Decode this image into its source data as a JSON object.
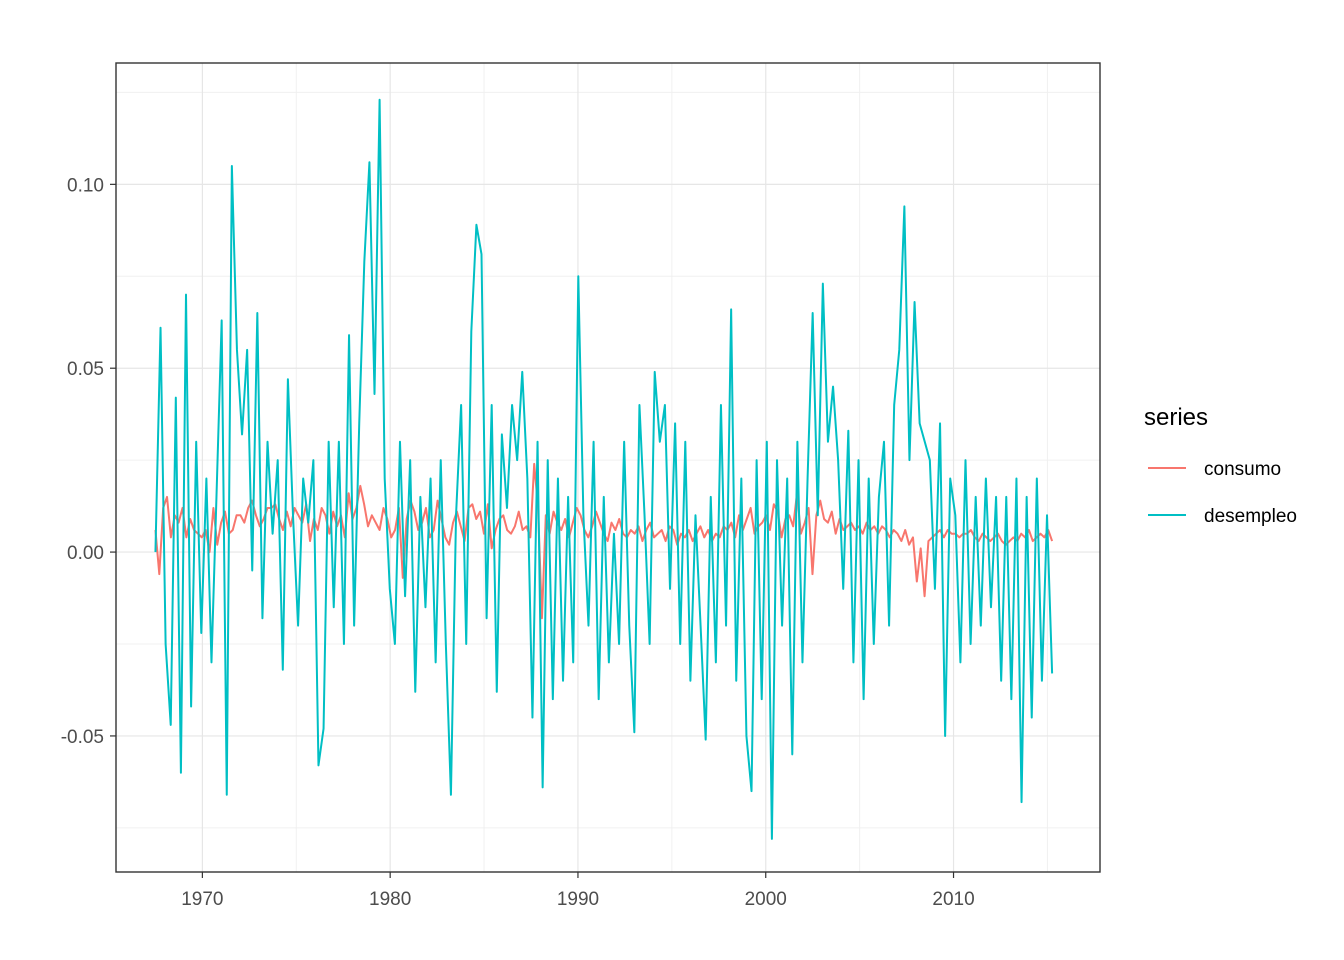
{
  "chart_data": {
    "type": "line",
    "title": "",
    "xlabel": "",
    "ylabel": "",
    "xlim": [
      1965.4,
      2017.8
    ],
    "ylim": [
      -0.087,
      0.133
    ],
    "x_ticks": [
      1970,
      1980,
      1990,
      2000,
      2010
    ],
    "x_tick_labels": [
      "1970",
      "1980",
      "1990",
      "2000",
      "2010"
    ],
    "y_ticks": [
      -0.05,
      0.0,
      0.05,
      0.1
    ],
    "y_tick_labels": [
      "-0.05",
      "0.00",
      "0.05",
      "0.10"
    ],
    "grid": true,
    "legend": {
      "title": "series",
      "position": "right",
      "entries": [
        {
          "label": "consumo",
          "color": "#F8766D"
        },
        {
          "label": "desempleo",
          "color": "#00BFC4"
        }
      ]
    },
    "x_start": 1967.5,
    "x_step": 0.25,
    "series": [
      {
        "name": "consumo",
        "color": "#F8766D",
        "values": [
          0.006,
          -0.006,
          0.012,
          0.015,
          0.004,
          0.01,
          0.008,
          0.012,
          0.004,
          0.009,
          0.006,
          0.005,
          0.004,
          0.006,
          0.0,
          0.012,
          0.002,
          0.008,
          0.011,
          0.005,
          0.006,
          0.01,
          0.01,
          0.008,
          0.012,
          0.014,
          0.01,
          0.007,
          0.009,
          0.012,
          0.012,
          0.013,
          0.009,
          0.006,
          0.011,
          0.007,
          0.012,
          0.01,
          0.008,
          0.013,
          0.003,
          0.009,
          0.006,
          0.012,
          0.01,
          0.005,
          0.011,
          0.007,
          0.01,
          0.004,
          0.016,
          0.009,
          0.012,
          0.018,
          0.013,
          0.007,
          0.01,
          0.008,
          0.006,
          0.012,
          0.009,
          0.004,
          0.006,
          0.012,
          -0.007,
          0.009,
          0.014,
          0.011,
          0.006,
          0.008,
          0.012,
          0.004,
          0.006,
          0.014,
          0.009,
          0.004,
          0.002,
          0.008,
          0.011,
          0.007,
          0.003,
          0.012,
          0.013,
          0.009,
          0.011,
          0.005,
          0.013,
          0.001,
          0.006,
          0.009,
          0.01,
          0.006,
          0.005,
          0.007,
          0.011,
          0.006,
          0.007,
          0.004,
          0.024,
          0.012,
          -0.018,
          0.01,
          0.005,
          0.011,
          0.008,
          0.006,
          0.009,
          0.004,
          0.008,
          0.012,
          0.01,
          0.006,
          0.004,
          0.007,
          0.011,
          0.008,
          0.005,
          0.003,
          0.008,
          0.006,
          0.009,
          0.005,
          0.004,
          0.006,
          0.005,
          0.007,
          0.003,
          0.006,
          0.008,
          0.004,
          0.005,
          0.006,
          0.003,
          0.007,
          0.006,
          0.002,
          0.005,
          0.004,
          0.006,
          0.003,
          0.005,
          0.007,
          0.004,
          0.006,
          0.003,
          0.005,
          0.004,
          0.007,
          0.006,
          0.008,
          0.004,
          0.01,
          0.006,
          0.009,
          0.012,
          0.005,
          0.007,
          0.008,
          0.01,
          0.006,
          0.013,
          0.011,
          0.004,
          0.009,
          0.01,
          0.007,
          0.016,
          0.005,
          0.008,
          0.012,
          -0.006,
          0.01,
          0.014,
          0.009,
          0.008,
          0.011,
          0.005,
          0.009,
          0.006,
          0.007,
          0.008,
          0.006,
          0.007,
          0.005,
          0.008,
          0.006,
          0.007,
          0.005,
          0.007,
          0.006,
          0.004,
          0.006,
          0.005,
          0.003,
          0.006,
          0.002,
          0.004,
          -0.008,
          0.001,
          -0.012,
          0.003,
          0.004,
          0.005,
          0.006,
          0.004,
          0.006,
          0.005,
          0.005,
          0.004,
          0.005,
          0.005,
          0.006,
          0.004,
          0.003,
          0.005,
          0.004,
          0.003,
          0.004,
          0.005,
          0.003,
          0.002,
          0.003,
          0.004,
          0.003,
          0.005,
          0.004,
          0.006,
          0.003,
          0.004,
          0.005,
          0.004,
          0.006,
          0.003
        ]
      },
      {
        "name": "desempleo",
        "color": "#00BFC4",
        "values": [
          0.0,
          0.061,
          -0.025,
          -0.047,
          0.042,
          -0.06,
          0.07,
          -0.042,
          0.03,
          -0.022,
          0.02,
          -0.03,
          0.016,
          0.063,
          -0.066,
          0.105,
          0.055,
          0.032,
          0.055,
          -0.005,
          0.065,
          -0.018,
          0.03,
          0.005,
          0.025,
          -0.032,
          0.047,
          0.01,
          -0.02,
          0.02,
          0.008,
          0.025,
          -0.058,
          -0.048,
          0.03,
          -0.015,
          0.03,
          -0.025,
          0.059,
          -0.02,
          0.035,
          0.079,
          0.106,
          0.043,
          0.123,
          0.02,
          -0.01,
          -0.025,
          0.03,
          -0.012,
          0.025,
          -0.038,
          0.015,
          -0.015,
          0.02,
          -0.03,
          0.025,
          -0.025,
          -0.066,
          0.01,
          0.04,
          -0.025,
          0.06,
          0.089,
          0.081,
          -0.018,
          0.04,
          -0.038,
          0.032,
          0.012,
          0.04,
          0.025,
          0.049,
          0.02,
          -0.045,
          0.03,
          -0.064,
          0.025,
          -0.04,
          0.02,
          -0.035,
          0.015,
          -0.03,
          0.075,
          0.01,
          -0.02,
          0.03,
          -0.04,
          0.015,
          -0.03,
          0.005,
          -0.025,
          0.03,
          -0.02,
          -0.049,
          0.04,
          0.01,
          -0.025,
          0.049,
          0.03,
          0.04,
          -0.01,
          0.035,
          -0.025,
          0.03,
          -0.035,
          0.01,
          -0.02,
          -0.051,
          0.015,
          -0.03,
          0.04,
          -0.02,
          0.066,
          -0.035,
          0.02,
          -0.05,
          -0.065,
          0.025,
          -0.04,
          0.03,
          -0.078,
          0.025,
          -0.02,
          0.02,
          -0.055,
          0.03,
          -0.03,
          0.02,
          0.065,
          0.01,
          0.073,
          0.03,
          0.045,
          0.025,
          -0.01,
          0.033,
          -0.03,
          0.025,
          -0.04,
          0.02,
          -0.025,
          0.015,
          0.03,
          -0.02,
          0.04,
          0.055,
          0.094,
          0.025,
          0.068,
          0.035,
          0.03,
          0.025,
          -0.01,
          0.035,
          -0.05,
          0.02,
          0.01,
          -0.03,
          0.025,
          -0.025,
          0.015,
          -0.02,
          0.02,
          -0.015,
          0.015,
          -0.035,
          0.015,
          -0.04,
          0.02,
          -0.068,
          0.015,
          -0.045,
          0.02,
          -0.035,
          0.01,
          -0.033
        ]
      }
    ]
  }
}
